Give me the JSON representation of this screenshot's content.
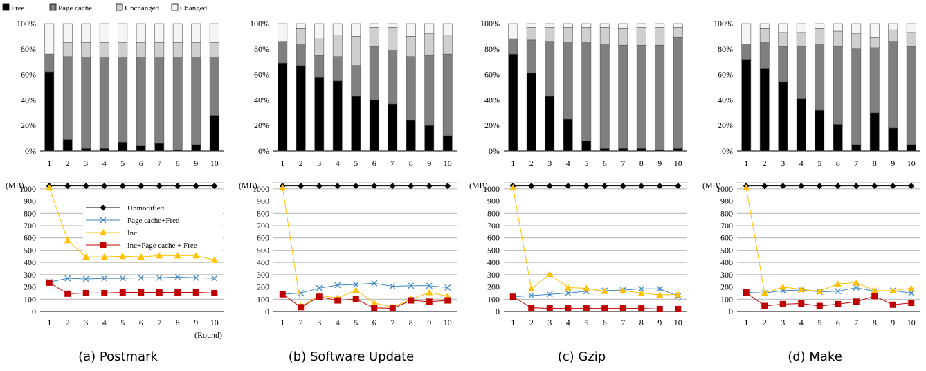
{
  "top_legend": [
    {
      "label": "Free",
      "color": "#000000"
    },
    {
      "label": "Page cache",
      "color": "#7f7f7f"
    },
    {
      "label": "Unchanged",
      "color": "#cfcfcf"
    },
    {
      "label": "Changed",
      "color": "#f5f5f5"
    }
  ],
  "line_legend": [
    {
      "label": "Unmodified",
      "color": "#000000",
      "marker": "diamond"
    },
    {
      "label": "Page cache+Free",
      "color": "#3f87bf",
      "marker": "x"
    },
    {
      "label": "Inc",
      "color": "#ffc000",
      "marker": "triangle"
    },
    {
      "label": "Inc+Page cache + Free",
      "color": "#c00000",
      "marker": "square"
    }
  ],
  "units": {
    "mb": "(MB)",
    "round": "(Round)"
  },
  "chart_data": [
    {
      "type": "bar",
      "stacked": "percent",
      "caption": "(a) Postmark",
      "categories": [
        "1",
        "2",
        "3",
        "4",
        "5",
        "6",
        "7",
        "8",
        "9",
        "10"
      ],
      "ylim": [
        0,
        100
      ],
      "yticks": [
        "0%",
        "20%",
        "40%",
        "60%",
        "80%",
        "100%"
      ],
      "series": [
        {
          "name": "Free",
          "values": [
            62,
            9,
            2,
            2,
            7,
            4,
            6,
            1,
            5,
            28
          ]
        },
        {
          "name": "Page cache",
          "values": [
            14,
            65,
            71,
            71,
            66,
            69,
            67,
            72,
            68,
            45
          ]
        },
        {
          "name": "Unchanged",
          "values": [
            0,
            11,
            12,
            12,
            12,
            12,
            12,
            12,
            12,
            12
          ]
        },
        {
          "name": "Changed",
          "values": [
            24,
            15,
            15,
            15,
            15,
            15,
            15,
            15,
            15,
            15
          ]
        }
      ]
    },
    {
      "type": "bar",
      "stacked": "percent",
      "caption": "(b) Software Update",
      "categories": [
        "1",
        "2",
        "3",
        "4",
        "5",
        "6",
        "7",
        "8",
        "9",
        "10"
      ],
      "ylim": [
        0,
        100
      ],
      "yticks": [
        "0%",
        "20%",
        "40%",
        "60%",
        "80%",
        "100%"
      ],
      "series": [
        {
          "name": "Free",
          "values": [
            69,
            67,
            58,
            55,
            43,
            40,
            37,
            24,
            20,
            12
          ]
        },
        {
          "name": "Page cache",
          "values": [
            17,
            17,
            17,
            19,
            24,
            42,
            42,
            50,
            55,
            64
          ]
        },
        {
          "name": "Unchanged",
          "values": [
            0,
            12,
            13,
            17,
            23,
            15,
            18,
            16,
            17,
            15
          ]
        },
        {
          "name": "Changed",
          "values": [
            14,
            4,
            12,
            9,
            10,
            3,
            3,
            10,
            8,
            9
          ]
        }
      ]
    },
    {
      "type": "bar",
      "stacked": "percent",
      "caption": "(c) Gzip",
      "categories": [
        "1",
        "2",
        "3",
        "4",
        "5",
        "6",
        "7",
        "8",
        "9",
        "10"
      ],
      "ylim": [
        0,
        100
      ],
      "yticks": [
        "0%",
        "20%",
        "40%",
        "60%",
        "80%",
        "100%"
      ],
      "series": [
        {
          "name": "Free",
          "values": [
            76,
            61,
            43,
            25,
            8,
            2,
            2,
            2,
            1,
            2
          ]
        },
        {
          "name": "Page cache",
          "values": [
            12,
            26,
            43,
            60,
            77,
            82,
            81,
            81,
            82,
            87
          ]
        },
        {
          "name": "Unchanged",
          "values": [
            0,
            10,
            11,
            12,
            12,
            13,
            13,
            14,
            14,
            8
          ]
        },
        {
          "name": "Changed",
          "values": [
            12,
            3,
            3,
            3,
            3,
            3,
            4,
            3,
            3,
            3
          ]
        }
      ]
    },
    {
      "type": "bar",
      "stacked": "percent",
      "caption": "(d) Make",
      "categories": [
        "1",
        "2",
        "3",
        "4",
        "5",
        "6",
        "7",
        "8",
        "9",
        "10"
      ],
      "ylim": [
        0,
        100
      ],
      "yticks": [
        "0%",
        "20%",
        "40%",
        "60%",
        "80%",
        "100%"
      ],
      "series": [
        {
          "name": "Free",
          "values": [
            72,
            65,
            54,
            41,
            32,
            21,
            5,
            30,
            18,
            5
          ]
        },
        {
          "name": "Page cache",
          "values": [
            12,
            20,
            28,
            41,
            52,
            61,
            75,
            51,
            68,
            77
          ]
        },
        {
          "name": "Unchanged",
          "values": [
            0,
            11,
            11,
            11,
            12,
            12,
            12,
            8,
            9,
            11
          ]
        },
        {
          "name": "Changed",
          "values": [
            16,
            4,
            7,
            7,
            4,
            6,
            8,
            11,
            5,
            7
          ]
        }
      ]
    },
    {
      "type": "line",
      "caption": "(a) Postmark",
      "x": [
        1,
        2,
        3,
        4,
        5,
        6,
        7,
        8,
        9,
        10
      ],
      "ylim": [
        0,
        1050
      ],
      "yticks": [
        "0",
        "100",
        "200",
        "300",
        "400",
        "500",
        "600",
        "700",
        "800",
        "900",
        "1000"
      ],
      "series": [
        {
          "name": "Unmodified",
          "values": [
            1024,
            1024,
            1024,
            1024,
            1024,
            1024,
            1024,
            1024,
            1024,
            1024
          ]
        },
        {
          "name": "Page cache+Free",
          "values": [
            240,
            270,
            265,
            270,
            270,
            275,
            275,
            280,
            275,
            270
          ]
        },
        {
          "name": "Inc",
          "values": [
            1010,
            580,
            445,
            445,
            450,
            445,
            455,
            455,
            455,
            420
          ]
        },
        {
          "name": "Inc+Page cache + Free",
          "values": [
            235,
            145,
            150,
            150,
            155,
            155,
            155,
            155,
            155,
            150
          ]
        }
      ]
    },
    {
      "type": "line",
      "caption": "(b) Software Update",
      "x": [
        1,
        2,
        3,
        4,
        5,
        6,
        7,
        8,
        9,
        10
      ],
      "ylim": [
        0,
        1050
      ],
      "yticks": [
        "0",
        "100",
        "200",
        "300",
        "400",
        "500",
        "600",
        "700",
        "800",
        "900",
        "1000"
      ],
      "series": [
        {
          "name": "Unmodified",
          "values": [
            1024,
            1024,
            1024,
            1024,
            1024,
            1024,
            1024,
            1024,
            1024,
            1024
          ]
        },
        {
          "name": "Page cache+Free",
          "values": [
            140,
            150,
            190,
            215,
            220,
            230,
            205,
            210,
            210,
            195
          ]
        },
        {
          "name": "Inc",
          "values": [
            1010,
            40,
            130,
            110,
            175,
            70,
            35,
            100,
            155,
            125
          ]
        },
        {
          "name": "Inc+Page cache + Free",
          "values": [
            140,
            35,
            120,
            90,
            100,
            30,
            25,
            90,
            80,
            90
          ]
        }
      ]
    },
    {
      "type": "line",
      "caption": "(c) Gzip",
      "x": [
        1,
        2,
        3,
        4,
        5,
        6,
        7,
        8,
        9,
        10
      ],
      "ylim": [
        0,
        1050
      ],
      "yticks": [
        "0",
        "100",
        "200",
        "300",
        "400",
        "500",
        "600",
        "700",
        "800",
        "900",
        "1000"
      ],
      "series": [
        {
          "name": "Unmodified",
          "values": [
            1024,
            1024,
            1024,
            1024,
            1024,
            1024,
            1024,
            1024,
            1024,
            1024
          ]
        },
        {
          "name": "Page cache+Free",
          "values": [
            120,
            130,
            140,
            150,
            165,
            170,
            175,
            185,
            185,
            125
          ]
        },
        {
          "name": "Inc",
          "values": [
            1010,
            185,
            305,
            195,
            190,
            165,
            170,
            150,
            135,
            140
          ]
        },
        {
          "name": "Inc+Page cache + Free",
          "values": [
            120,
            30,
            25,
            25,
            25,
            25,
            25,
            25,
            20,
            20
          ]
        }
      ]
    },
    {
      "type": "line",
      "caption": "(d) Make",
      "x": [
        1,
        2,
        3,
        4,
        5,
        6,
        7,
        8,
        9,
        10
      ],
      "ylim": [
        0,
        1050
      ],
      "yticks": [
        "0",
        "100",
        "200",
        "300",
        "400",
        "500",
        "600",
        "700",
        "800",
        "900",
        "1000"
      ],
      "series": [
        {
          "name": "Unmodified",
          "values": [
            1024,
            1024,
            1024,
            1024,
            1024,
            1024,
            1024,
            1024,
            1024,
            1024
          ]
        },
        {
          "name": "Page cache+Free",
          "values": [
            155,
            150,
            170,
            175,
            160,
            165,
            195,
            165,
            170,
            150
          ]
        },
        {
          "name": "Inc",
          "values": [
            1010,
            150,
            200,
            180,
            165,
            225,
            235,
            170,
            170,
            190
          ]
        },
        {
          "name": "Inc+Page cache + Free",
          "values": [
            155,
            45,
            60,
            65,
            45,
            60,
            80,
            125,
            55,
            70
          ]
        }
      ]
    }
  ]
}
